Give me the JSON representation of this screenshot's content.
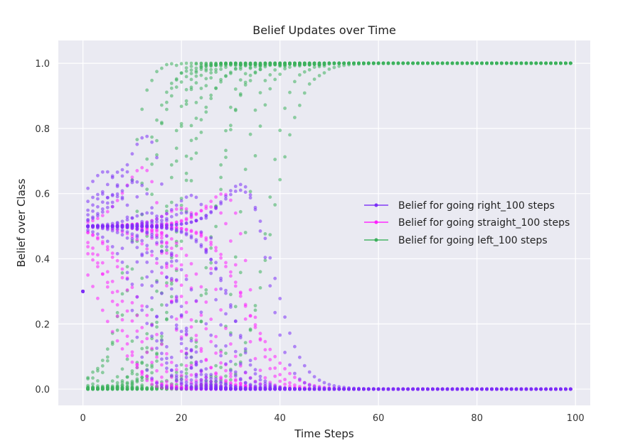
{
  "chart_data": {
    "type": "scatter",
    "title": "Belief Updates over Time",
    "xlabel": "Time Steps",
    "ylabel": "Belief over Class",
    "xlim": [
      -5,
      103
    ],
    "ylim": [
      -0.05,
      1.07
    ],
    "xticks": [
      "0",
      "20",
      "40",
      "60",
      "80",
      "100"
    ],
    "yticks": [
      "0.0",
      "0.2",
      "0.4",
      "0.6",
      "0.8",
      "1.0"
    ],
    "grid": true,
    "legend_position": "center-right",
    "plot_background": "#EAEAF2",
    "series": [
      {
        "name": "Belief for going right_100 steps",
        "color": "#7B2FF7"
      },
      {
        "name": "Belief for going straight_100 steps",
        "color": "#FF1EFF"
      },
      {
        "name": "Belief for going left_100 steps",
        "color": "#3CB05C"
      }
    ]
  }
}
